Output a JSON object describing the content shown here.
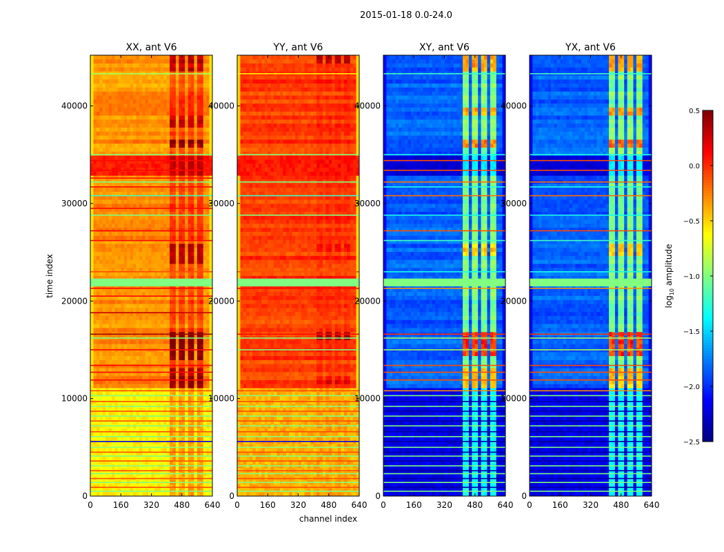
{
  "chart_data": {
    "type": "heatmap",
    "suptitle": "2015-01-18 0.0-24.0",
    "xlabel": "channel index",
    "ylabel": "time index",
    "xlim": [
      0,
      640
    ],
    "ylim": [
      0,
      45200
    ],
    "xticks": [
      "0",
      "160",
      "320",
      "480",
      "640"
    ],
    "xtick_values": [
      0,
      160,
      320,
      480,
      640
    ],
    "yticks": [
      "0",
      "10000",
      "20000",
      "30000",
      "40000"
    ],
    "ytick_values": [
      0,
      10000,
      20000,
      30000,
      40000
    ],
    "colorbar": {
      "label_main": "log",
      "label_sub": "10",
      "label_tail": " amplitude",
      "range": [
        -2.5,
        0.5
      ],
      "ticks": [
        "0.5",
        "0.0",
        "−0.5",
        "−1.0",
        "−1.5",
        "−2.0",
        "−2.5"
      ],
      "tick_values": [
        0.5,
        0.0,
        -0.5,
        -1.0,
        -1.5,
        -2.0,
        -2.5
      ],
      "colormap": "jet"
    },
    "panels": [
      {
        "title": "XX, ant V6",
        "base": -0.3,
        "edge": -0.55,
        "stripes": [
          [
            420,
            450
          ],
          [
            460,
            500
          ],
          [
            510,
            545
          ],
          [
            555,
            590
          ]
        ],
        "stripe_delta": 0.25,
        "hot_periods": [
          [
            11000,
            13000,
            0.5
          ],
          [
            14000,
            17000,
            0.7
          ],
          [
            24000,
            26000,
            0.45
          ],
          [
            35800,
            36400,
            0.6
          ],
          [
            37800,
            39000,
            0.4
          ],
          [
            43500,
            45200,
            0.4
          ]
        ],
        "region_low": -0.6,
        "lines": [
          [
            500,
            -1.0
          ],
          [
            900,
            -0.1
          ],
          [
            1400,
            -1.0
          ],
          [
            1800,
            -0.1
          ],
          [
            2300,
            -1.0
          ],
          [
            2600,
            -0.1
          ],
          [
            3100,
            -1.0
          ],
          [
            3600,
            -0.1
          ],
          [
            4100,
            -1.0
          ],
          [
            4500,
            -0.1
          ],
          [
            5000,
            -1.0
          ],
          [
            5600,
            -2.2
          ],
          [
            6100,
            -1.0
          ],
          [
            6600,
            -0.1
          ],
          [
            7200,
            -1.0
          ],
          [
            7700,
            -0.1
          ],
          [
            8200,
            -1.0
          ],
          [
            8700,
            -0.1
          ],
          [
            9200,
            -1.0
          ],
          [
            9700,
            -0.1
          ],
          [
            10300,
            -1.0
          ],
          [
            10800,
            -0.1
          ],
          [
            11900,
            0.1
          ],
          [
            12700,
            0.1
          ],
          [
            13400,
            0.1
          ],
          [
            15000,
            0.1
          ],
          [
            16200,
            -1.0
          ],
          [
            16600,
            0.4
          ],
          [
            18800,
            0.3
          ],
          [
            20500,
            0.1
          ],
          [
            21300,
            0.1
          ],
          [
            23000,
            -0.1
          ],
          [
            26200,
            0.1
          ],
          [
            27200,
            0.1
          ],
          [
            28800,
            -1.0
          ],
          [
            29500,
            0.1
          ],
          [
            30800,
            -1.2
          ],
          [
            31700,
            0.1
          ],
          [
            32200,
            -1.0
          ],
          [
            32600,
            0.1
          ],
          [
            33400,
            0.1
          ],
          [
            34400,
            0.1
          ],
          [
            35000,
            -1.0
          ],
          [
            43300,
            -0.9
          ]
        ],
        "band": [
          21500,
          22300,
          -1.0
        ],
        "upper_block": [
          33000,
          35000,
          0.05
        ]
      },
      {
        "title": "YY, ant V6",
        "base": -0.05,
        "edge": -0.5,
        "stripes": [
          [
            420,
            450
          ],
          [
            460,
            500
          ],
          [
            510,
            545
          ],
          [
            555,
            590
          ]
        ],
        "stripe_delta": 0.05,
        "hot_periods": [
          [
            16000,
            16800,
            0.5
          ],
          [
            11500,
            12200,
            0.2
          ],
          [
            25000,
            26000,
            0.15
          ],
          [
            44200,
            45200,
            0.45
          ]
        ],
        "region_low": -0.4,
        "lines": [
          [
            500,
            -1.0
          ],
          [
            900,
            -0.1
          ],
          [
            1400,
            -1.0
          ],
          [
            1800,
            -0.1
          ],
          [
            2300,
            -1.0
          ],
          [
            2600,
            -0.1
          ],
          [
            3100,
            -1.0
          ],
          [
            3600,
            -0.1
          ],
          [
            4100,
            -1.0
          ],
          [
            4500,
            -0.1
          ],
          [
            5000,
            -1.0
          ],
          [
            5600,
            -2.2
          ],
          [
            6100,
            -1.0
          ],
          [
            6600,
            -0.1
          ],
          [
            7200,
            -1.0
          ],
          [
            7700,
            -0.1
          ],
          [
            8200,
            -1.0
          ],
          [
            8700,
            -0.1
          ],
          [
            9200,
            -1.0
          ],
          [
            9700,
            -0.1
          ],
          [
            10300,
            -1.0
          ],
          [
            10800,
            -0.1
          ],
          [
            15000,
            -1.0
          ],
          [
            16200,
            -1.0
          ],
          [
            16600,
            0.1
          ],
          [
            21300,
            0.1
          ],
          [
            23000,
            -0.1
          ],
          [
            28800,
            -1.0
          ],
          [
            30800,
            -1.2
          ],
          [
            32200,
            -1.0
          ],
          [
            35000,
            -1.0
          ],
          [
            43300,
            -0.6
          ]
        ],
        "band": [
          21500,
          22300,
          -1.0
        ],
        "upper_block": [
          33000,
          35000,
          0.05
        ]
      },
      {
        "title": "XY, ant V6",
        "base": -1.85,
        "edge": -2.1,
        "stripes": [
          [
            415,
            445
          ],
          [
            460,
            495
          ],
          [
            510,
            540
          ],
          [
            555,
            585
          ]
        ],
        "stripe_delta": 0.85,
        "hot_periods": [
          [
            11000,
            13000,
            0.6
          ],
          [
            14500,
            17000,
            1.1
          ],
          [
            24500,
            26000,
            0.6
          ],
          [
            35800,
            36400,
            0.9
          ],
          [
            39000,
            39800,
            0.7
          ],
          [
            43500,
            45200,
            0.8
          ]
        ],
        "region_low": -2.2,
        "lines": [
          [
            500,
            -1.0
          ],
          [
            900,
            -2.4
          ],
          [
            1400,
            -1.0
          ],
          [
            1800,
            -2.4
          ],
          [
            2300,
            -1.0
          ],
          [
            2600,
            -2.4
          ],
          [
            3100,
            -1.0
          ],
          [
            3600,
            -2.4
          ],
          [
            4100,
            -1.0
          ],
          [
            4500,
            -2.4
          ],
          [
            5000,
            -1.0
          ],
          [
            5600,
            -2.4
          ],
          [
            6100,
            -1.0
          ],
          [
            6600,
            -2.4
          ],
          [
            7200,
            -1.0
          ],
          [
            7700,
            -2.4
          ],
          [
            8200,
            -1.0
          ],
          [
            8700,
            -2.4
          ],
          [
            9200,
            -1.0
          ],
          [
            9700,
            -2.4
          ],
          [
            10300,
            -1.0
          ],
          [
            10800,
            -0.3
          ],
          [
            11900,
            -0.1
          ],
          [
            12700,
            -0.1
          ],
          [
            13400,
            -0.1
          ],
          [
            15000,
            -0.9
          ],
          [
            16200,
            -0.9
          ],
          [
            16600,
            0.0
          ],
          [
            21300,
            -0.3
          ],
          [
            23000,
            -1.3
          ],
          [
            26200,
            -1.2
          ],
          [
            27200,
            -0.1
          ],
          [
            28800,
            -1.3
          ],
          [
            30800,
            -0.2
          ],
          [
            31700,
            -1.3
          ],
          [
            32200,
            -0.2
          ],
          [
            33400,
            -0.1
          ],
          [
            34400,
            -0.1
          ],
          [
            35000,
            -1.3
          ],
          [
            43300,
            -1.2
          ]
        ],
        "band": [
          21500,
          22300,
          -1.0
        ],
        "upper_block": [
          33000,
          35000,
          -2.25
        ]
      },
      {
        "title": "YX, ant V6",
        "base": -1.85,
        "edge": -2.1,
        "stripes": [
          [
            415,
            445
          ],
          [
            460,
            495
          ],
          [
            510,
            540
          ],
          [
            555,
            585
          ]
        ],
        "stripe_delta": 0.85,
        "hot_periods": [
          [
            11000,
            13000,
            0.6
          ],
          [
            14500,
            17000,
            1.1
          ],
          [
            24500,
            26000,
            0.6
          ],
          [
            35800,
            36400,
            0.9
          ],
          [
            39000,
            39800,
            0.7
          ],
          [
            43500,
            45200,
            0.8
          ]
        ],
        "region_low": -2.2,
        "lines": [
          [
            500,
            -1.0
          ],
          [
            900,
            -2.4
          ],
          [
            1400,
            -1.0
          ],
          [
            1800,
            -2.4
          ],
          [
            2300,
            -1.0
          ],
          [
            2600,
            -2.4
          ],
          [
            3100,
            -1.0
          ],
          [
            3600,
            -2.4
          ],
          [
            4100,
            -1.0
          ],
          [
            4500,
            -2.4
          ],
          [
            5000,
            -1.0
          ],
          [
            5600,
            -2.4
          ],
          [
            6100,
            -1.0
          ],
          [
            6600,
            -2.4
          ],
          [
            7200,
            -1.0
          ],
          [
            7700,
            -2.4
          ],
          [
            8200,
            -1.0
          ],
          [
            8700,
            -2.4
          ],
          [
            9200,
            -1.0
          ],
          [
            9700,
            -2.4
          ],
          [
            10300,
            -1.0
          ],
          [
            10800,
            -0.3
          ],
          [
            11900,
            -0.1
          ],
          [
            12700,
            -0.1
          ],
          [
            13400,
            -0.1
          ],
          [
            15000,
            -0.9
          ],
          [
            16200,
            -0.9
          ],
          [
            16600,
            0.0
          ],
          [
            21300,
            -0.3
          ],
          [
            23000,
            -1.3
          ],
          [
            26200,
            -1.2
          ],
          [
            27200,
            -0.1
          ],
          [
            28800,
            -1.3
          ],
          [
            30800,
            -0.2
          ],
          [
            31700,
            -1.3
          ],
          [
            32200,
            -0.2
          ],
          [
            33400,
            -0.1
          ],
          [
            34400,
            -0.1
          ],
          [
            35000,
            -1.3
          ],
          [
            43300,
            -1.2
          ]
        ],
        "band": [
          21500,
          22300,
          -1.0
        ],
        "upper_block": [
          33000,
          35000,
          -2.25
        ]
      }
    ]
  }
}
